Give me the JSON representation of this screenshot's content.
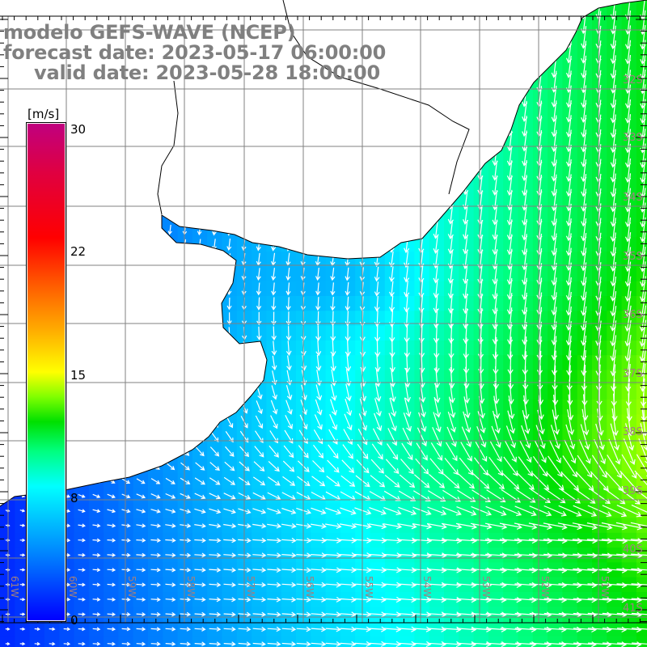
{
  "title": {
    "line1": "modelo GEFS-WAVE (NCEP)",
    "line2": "forecast date: 2023-05-17 06:00:00",
    "line3": "valid date: 2023-05-28 18:00:00"
  },
  "colorbar": {
    "unit": "[m/s]",
    "ticks": [
      {
        "label": "30",
        "value": 30
      },
      {
        "label": "22",
        "value": 22
      },
      {
        "label": "15",
        "value": 15
      },
      {
        "label": "8",
        "value": 8
      },
      {
        "label": "0",
        "value": 0
      }
    ],
    "min": 0,
    "max": 30
  },
  "latitude_labels": [
    "32S",
    "33S",
    "34S",
    "35S",
    "36S",
    "37S",
    "38S",
    "39S",
    "40S",
    "41S"
  ],
  "longitude_labels": [
    "61W",
    "60W",
    "59W",
    "58W",
    "57W",
    "56W",
    "55W",
    "54W",
    "53W",
    "52W",
    "51W"
  ],
  "colors": {
    "title": "#808080",
    "grid": "#808080",
    "land": "#ffffff",
    "coast": "#000000",
    "arrow": "#ffffff"
  }
}
